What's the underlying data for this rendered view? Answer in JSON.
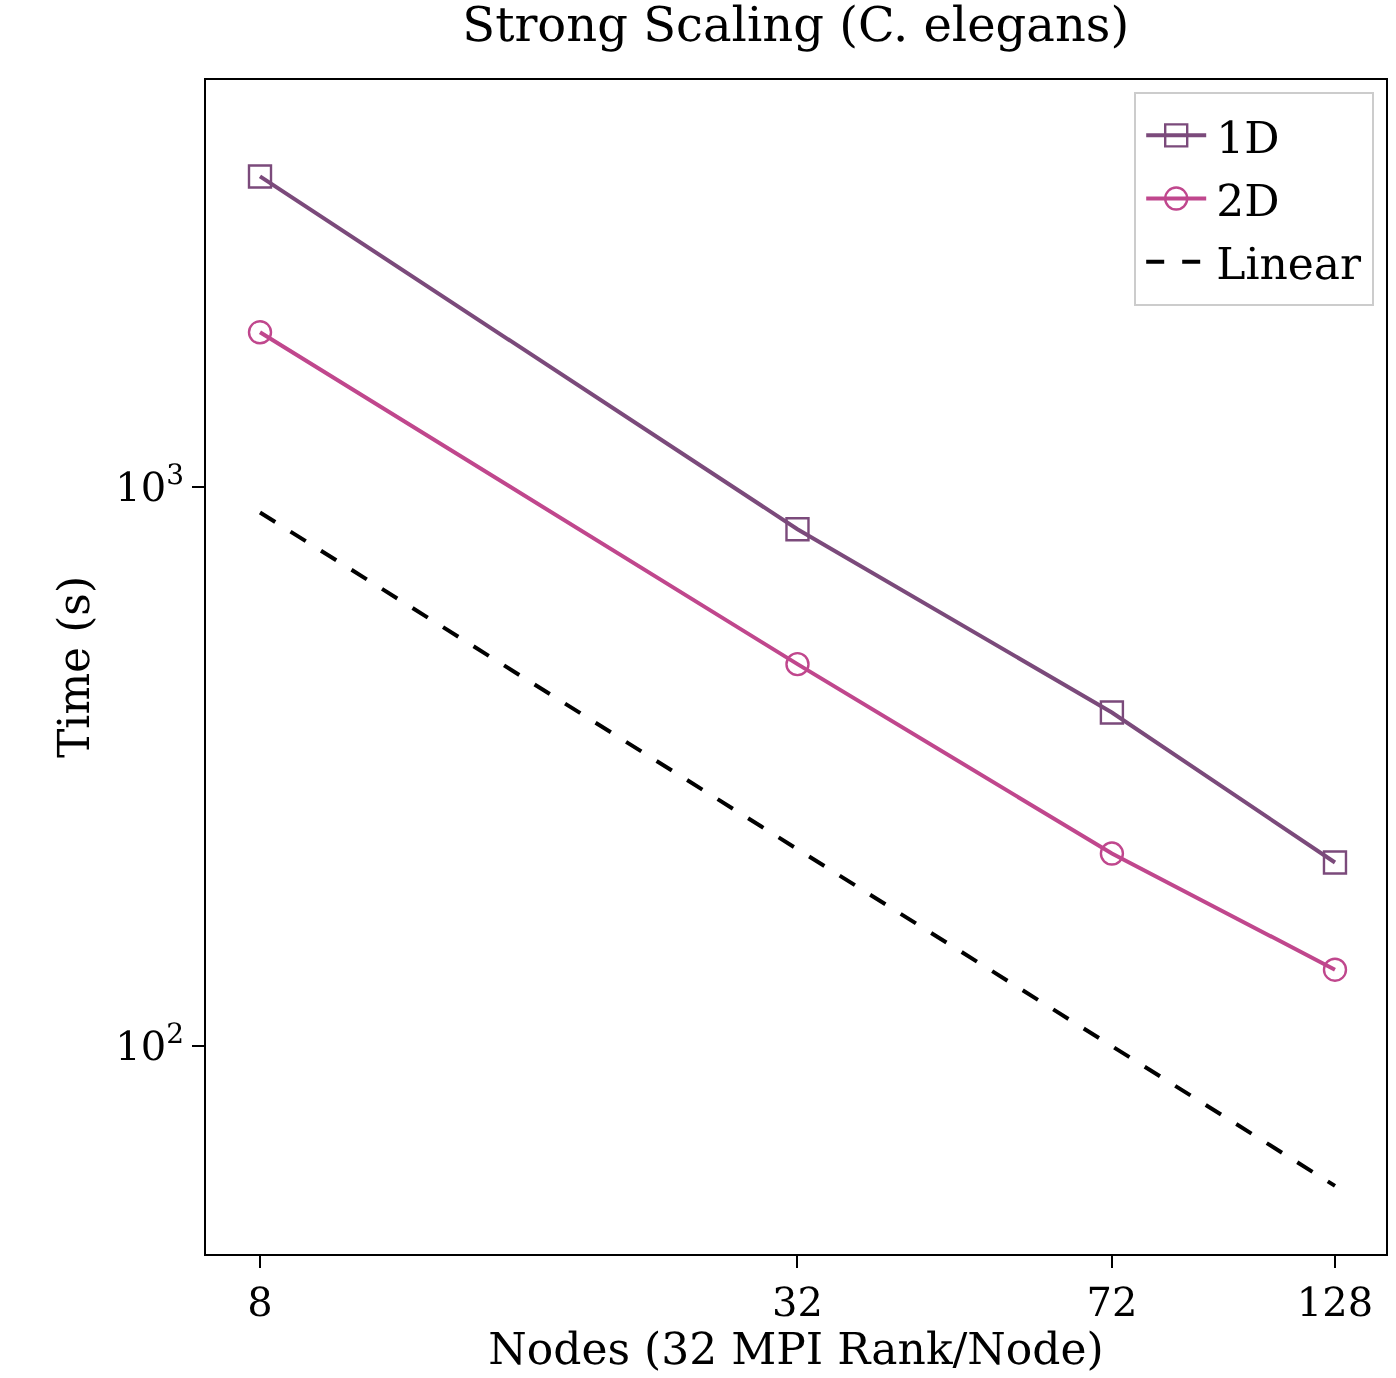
{
  "chart_data": {
    "type": "line",
    "title": "Strong Scaling (C. elegans)",
    "xlabel": "Nodes (32 MPI Rank/Node)",
    "ylabel": "Time (s)",
    "x": [
      8,
      32,
      72,
      128
    ],
    "log": "xy",
    "xlim": [
      6.96,
      146
    ],
    "xticks": [
      8,
      32,
      72,
      128
    ],
    "ylim": [
      42.5,
      5340
    ],
    "yticks": [
      {
        "value": 100,
        "label": "10$^{2}$"
      },
      {
        "value": 1000,
        "label": "10$^{3}$"
      }
    ],
    "series": [
      {
        "name": "1D",
        "color": "#7b4a7b",
        "values": [
          3590,
          840,
          395,
          213
        ],
        "marker": "square",
        "line_style": "solid"
      },
      {
        "name": "2D",
        "color": "#c0478d",
        "values": [
          1890,
          482,
          221,
          137
        ],
        "marker": "circle",
        "line_style": "solid"
      },
      {
        "name": "Linear",
        "color": "#000000",
        "values": [
          900,
          225,
          100,
          56.25
        ],
        "marker": "none",
        "line_style": "dashed"
      }
    ],
    "legend": "top right"
  }
}
